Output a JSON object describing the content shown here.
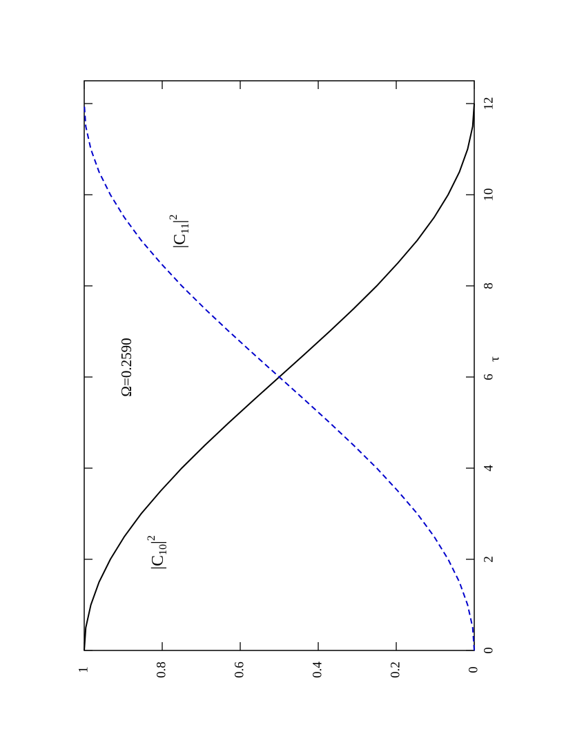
{
  "chart_data": {
    "type": "line",
    "x_label": "τ",
    "annotation": "Ω=0.2590",
    "x": [
      0,
      0.5,
      1,
      1.5,
      2,
      2.5,
      3,
      3.5,
      4,
      4.5,
      5,
      5.5,
      6,
      6.5,
      7,
      7.5,
      8,
      8.5,
      9,
      9.5,
      10,
      10.5,
      11,
      11.5,
      12
    ],
    "series": [
      {
        "name_parts": [
          "|C",
          "10",
          "|",
          "2"
        ],
        "color": "#000000",
        "dash": "solid",
        "values": [
          1,
          0.996,
          0.983,
          0.962,
          0.933,
          0.897,
          0.854,
          0.804,
          0.75,
          0.691,
          0.629,
          0.565,
          0.5,
          0.435,
          0.371,
          0.309,
          0.25,
          0.196,
          0.146,
          0.103,
          0.067,
          0.038,
          0.017,
          0.004,
          0
        ]
      },
      {
        "name_parts": [
          "|C",
          "11",
          "|",
          "2"
        ],
        "color": "#0000cc",
        "dash": "dashed",
        "values": [
          0,
          0.004,
          0.017,
          0.038,
          0.067,
          0.103,
          0.146,
          0.196,
          0.25,
          0.309,
          0.371,
          0.435,
          0.5,
          0.565,
          0.629,
          0.691,
          0.75,
          0.804,
          0.854,
          0.897,
          0.933,
          0.962,
          0.983,
          0.996,
          1
        ]
      }
    ],
    "xlim": [
      0,
      12.5
    ],
    "xticks": [
      0,
      2,
      4,
      6,
      8,
      10,
      12
    ],
    "ylim": [
      0,
      1
    ],
    "yticks": [
      0,
      0.2,
      0.4,
      0.6,
      0.8,
      1
    ]
  }
}
